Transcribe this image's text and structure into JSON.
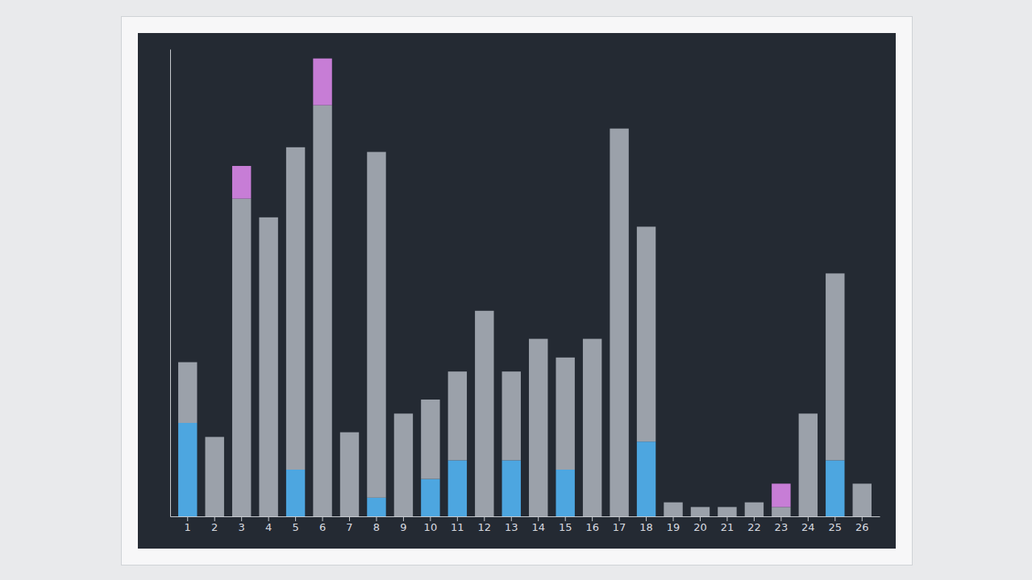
{
  "chart_data": {
    "type": "bar",
    "stacked": true,
    "tick_labels": "x",
    "categories": [
      "1",
      "2",
      "3",
      "4",
      "5",
      "6",
      "7",
      "8",
      "9",
      "10",
      "11",
      "12",
      "13",
      "14",
      "15",
      "16",
      "17",
      "18",
      "19",
      "20",
      "21",
      "22",
      "23",
      "24",
      "25",
      "26"
    ],
    "series": [
      {
        "color": "#4da6e0",
        "values": [
          20,
          0,
          0,
          0,
          10,
          0,
          0,
          4,
          0,
          8,
          12,
          0,
          12,
          0,
          10,
          0,
          0,
          16,
          0,
          0,
          0,
          0,
          0,
          0,
          12,
          0
        ]
      },
      {
        "color": "#9ba1aa",
        "values": [
          13,
          17,
          68,
          64,
          69,
          88,
          18,
          74,
          22,
          17,
          19,
          44,
          19,
          38,
          24,
          38,
          83,
          46,
          3,
          2,
          2,
          3,
          2,
          22,
          40,
          7
        ]
      },
      {
        "color": "#c77dd6",
        "values": [
          0,
          0,
          7,
          0,
          0,
          10,
          0,
          0,
          0,
          0,
          0,
          0,
          0,
          0,
          0,
          0,
          0,
          0,
          0,
          0,
          0,
          0,
          5,
          0,
          0,
          0
        ]
      }
    ],
    "ylim": [
      0,
      100
    ]
  }
}
